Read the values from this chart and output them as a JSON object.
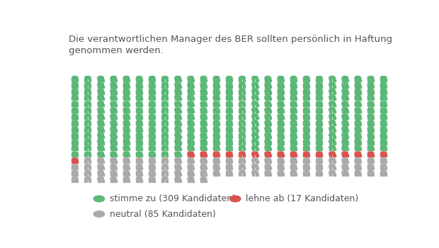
{
  "title": "Die verantwortlichen Manager des BER sollten persönlich in Haftung\ngenommen werden.",
  "stimme_zu": 309,
  "lehne_ab": 17,
  "neutral": 85,
  "color_green": "#5cb878",
  "color_red": "#d9534f",
  "color_gray": "#aaaaaa",
  "bg_color": "#ffffff",
  "text_color": "#555555",
  "cols": 25,
  "legend_labels": [
    "stimme zu (309 Kandidaten)",
    "lehne ab (17 Kandidaten)",
    "neutral (85 Kandidaten)"
  ],
  "title_fontsize": 9.5,
  "legend_fontsize": 9,
  "icon_fontsize": 12
}
